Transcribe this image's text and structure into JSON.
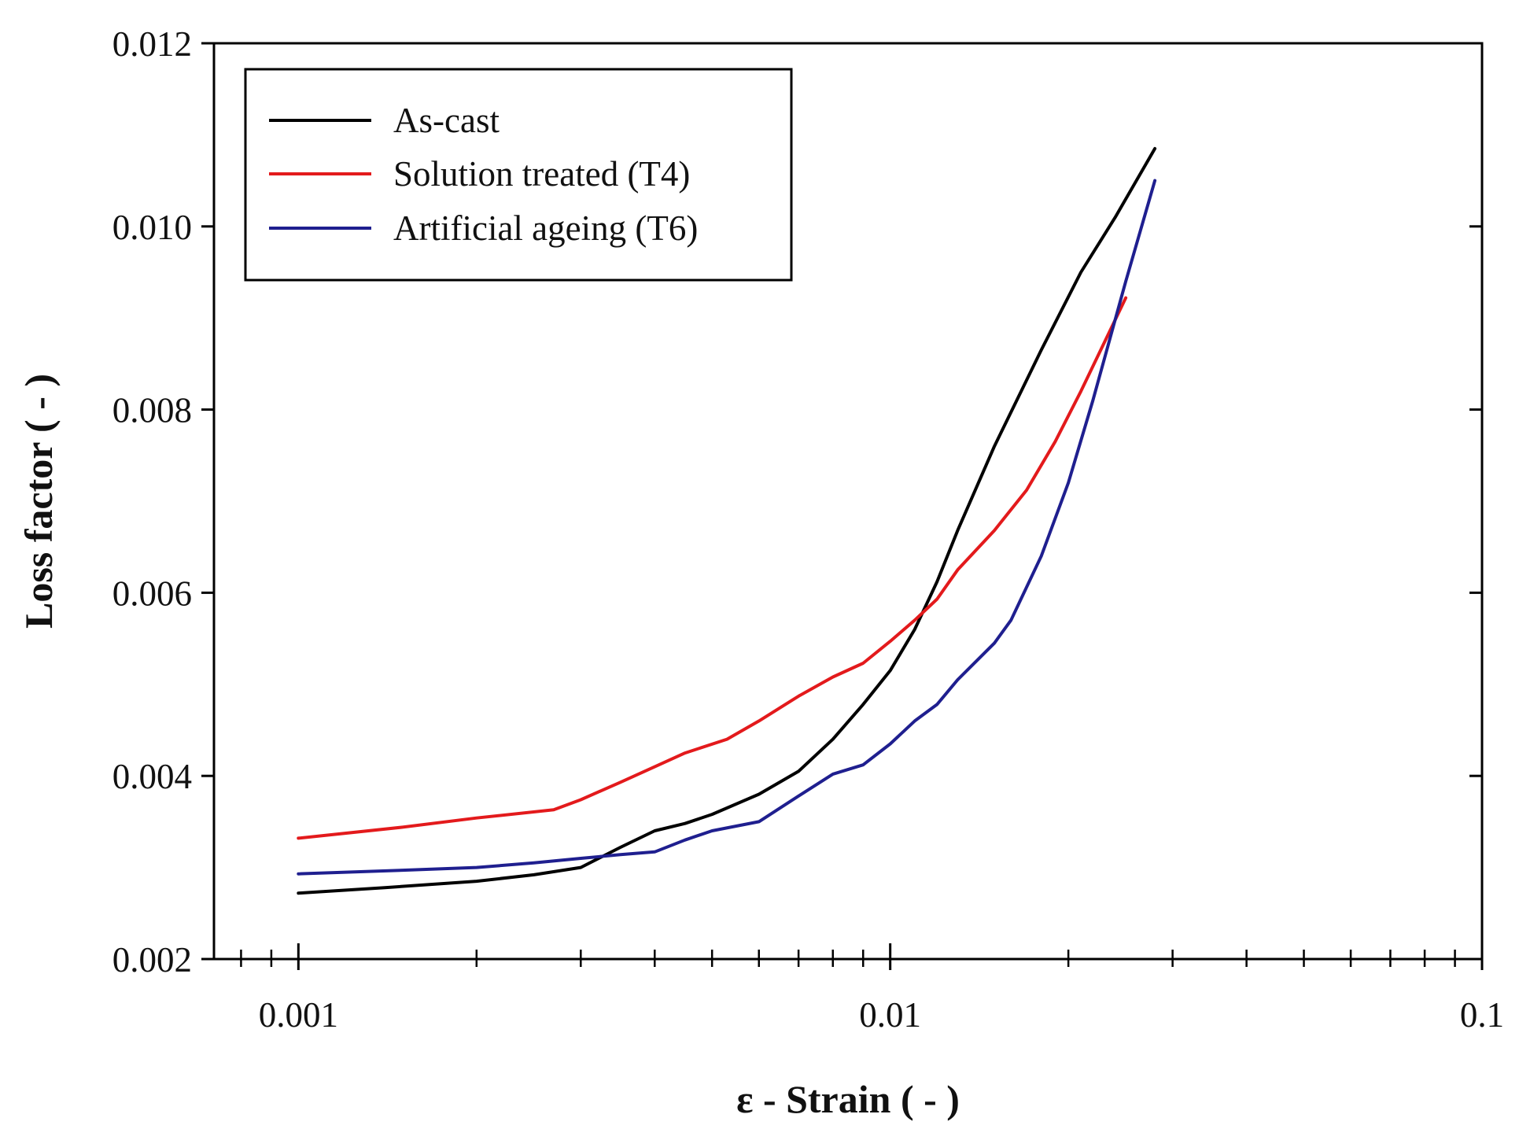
{
  "chart_data": {
    "type": "line",
    "title": "",
    "xlabel": "ε - Strain ( - )",
    "ylabel": "Loss factor ( - )",
    "xscale": "log",
    "xlim": [
      0.00072,
      0.1
    ],
    "ylim": [
      0.002,
      0.012
    ],
    "xticks": [
      {
        "value": 0.001,
        "label": "0.001"
      },
      {
        "value": 0.01,
        "label": "0.01"
      },
      {
        "value": 0.1,
        "label": "0.1"
      }
    ],
    "yticks": [
      {
        "value": 0.002,
        "label": "0.002"
      },
      {
        "value": 0.004,
        "label": "0.004"
      },
      {
        "value": 0.006,
        "label": "0.006"
      },
      {
        "value": 0.008,
        "label": "0.008"
      },
      {
        "value": 0.01,
        "label": "0.010"
      },
      {
        "value": 0.012,
        "label": "0.012"
      }
    ],
    "grid": false,
    "legend_position": "top-left",
    "series": [
      {
        "name": "As-cast",
        "color": "#000000",
        "x": [
          0.001,
          0.0014,
          0.002,
          0.0025,
          0.003,
          0.0035,
          0.004,
          0.0045,
          0.005,
          0.006,
          0.007,
          0.008,
          0.009,
          0.01,
          0.011,
          0.012,
          0.013,
          0.015,
          0.018,
          0.021,
          0.024,
          0.028
        ],
        "y": [
          0.00272,
          0.00278,
          0.00285,
          0.00292,
          0.003,
          0.00322,
          0.0034,
          0.00348,
          0.00358,
          0.0038,
          0.00405,
          0.0044,
          0.00478,
          0.00515,
          0.0056,
          0.00612,
          0.00668,
          0.0076,
          0.00865,
          0.0095,
          0.0101,
          0.01085
        ]
      },
      {
        "name": "Solution treated (T4)",
        "color": "#e31a1c",
        "x": [
          0.001,
          0.0015,
          0.002,
          0.0027,
          0.003,
          0.0035,
          0.004,
          0.0045,
          0.0053,
          0.006,
          0.007,
          0.008,
          0.009,
          0.01,
          0.011,
          0.012,
          0.013,
          0.015,
          0.017,
          0.019,
          0.021,
          0.025
        ],
        "y": [
          0.00332,
          0.00344,
          0.00354,
          0.00363,
          0.00374,
          0.00393,
          0.0041,
          0.00425,
          0.0044,
          0.0046,
          0.00487,
          0.00508,
          0.00523,
          0.00547,
          0.0057,
          0.00593,
          0.00625,
          0.00668,
          0.00712,
          0.00765,
          0.0082,
          0.00922
        ]
      },
      {
        "name": "Artificial ageing (T6)",
        "color": "#1f1f8f",
        "x": [
          0.001,
          0.0015,
          0.002,
          0.0025,
          0.003,
          0.0035,
          0.004,
          0.0045,
          0.005,
          0.006,
          0.007,
          0.008,
          0.009,
          0.01,
          0.011,
          0.012,
          0.013,
          0.015,
          0.016,
          0.018,
          0.02,
          0.022,
          0.025,
          0.028
        ],
        "y": [
          0.00293,
          0.00297,
          0.003,
          0.00305,
          0.0031,
          0.00314,
          0.00317,
          0.0033,
          0.0034,
          0.0035,
          0.00378,
          0.00402,
          0.00412,
          0.00435,
          0.0046,
          0.00478,
          0.00505,
          0.00545,
          0.0057,
          0.0064,
          0.0072,
          0.0081,
          0.0094,
          0.0105
        ]
      }
    ]
  }
}
